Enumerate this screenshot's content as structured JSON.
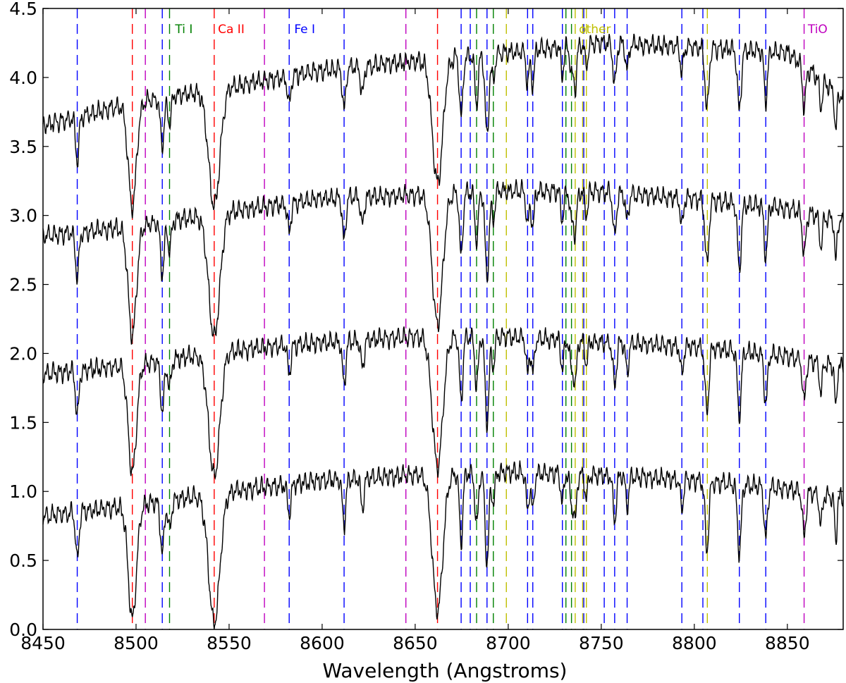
{
  "chart_data": {
    "type": "line",
    "title": "",
    "xlabel": "Wavelength (Angstroms)",
    "ylabel": "",
    "xlim": [
      8450,
      8880
    ],
    "ylim": [
      0.0,
      4.5
    ],
    "grid": false,
    "x_ticks": [
      8450,
      8500,
      8550,
      8600,
      8650,
      8700,
      8750,
      8800,
      8850
    ],
    "y_ticks": [
      "0.0",
      "0.5",
      "1.0",
      "1.5",
      "2.0",
      "2.5",
      "3.0",
      "3.5",
      "4.0",
      "4.5"
    ],
    "colors": {
      "spectrum": "#000000",
      "Ti I": "#008000",
      "Ca II": "#ff0000",
      "Fe I": "#0000ff",
      "other": "#bfbf00",
      "TiO": "#bf00bf"
    },
    "line_groups": [
      {
        "label": "Ti I",
        "color": "#008000",
        "wavelengths": [
          8518.0,
          8683.0,
          8692.0,
          8731.0,
          8734.0
        ]
      },
      {
        "label": "Ca II",
        "color": "#ff0000",
        "wavelengths": [
          8498.0,
          8542.0,
          8662.0
        ]
      },
      {
        "label": "Fe I",
        "color": "#0000ff",
        "wavelengths": [
          8468.4,
          8514.1,
          8582.3,
          8611.8,
          8674.7,
          8679.6,
          8688.6,
          8710.4,
          8713.2,
          8729.1,
          8757.2,
          8763.9,
          8793.3,
          8804.6,
          8824.2,
          8838.4,
          8740.6,
          8751.6
        ]
      },
      {
        "label": "other",
        "color": "#bfbf00",
        "wavelengths": [
          8699.0,
          8736.0,
          8740.0,
          8742.0,
          8807.0
        ]
      },
      {
        "label": "TiO",
        "color": "#bf00bf",
        "wavelengths": [
          8505.0,
          8569.0,
          8645.0,
          8859.0
        ]
      }
    ],
    "legend_positions": [
      {
        "label": "Ti I",
        "x": 8521
      },
      {
        "label": "Ca II",
        "x": 8544
      },
      {
        "label": "Fe I",
        "x": 8585
      },
      {
        "label": "other",
        "x": 8738
      },
      {
        "label": "TiO",
        "x": 8861
      }
    ],
    "series": [
      {
        "offset": 3.0,
        "continuum": [
          [
            8450,
            0.65
          ],
          [
            8500,
            0.82
          ],
          [
            8550,
            0.93
          ],
          [
            8600,
            1.05
          ],
          [
            8650,
            1.12
          ],
          [
            8700,
            1.18
          ],
          [
            8750,
            1.25
          ],
          [
            8800,
            1.22
          ],
          [
            8850,
            1.18
          ],
          [
            8880,
            0.85
          ]
        ],
        "depth_scale": 1.0
      },
      {
        "offset": 2.0,
        "continuum": [
          [
            8450,
            0.85
          ],
          [
            8500,
            0.92
          ],
          [
            8550,
            1.03
          ],
          [
            8600,
            1.12
          ],
          [
            8650,
            1.15
          ],
          [
            8700,
            1.18
          ],
          [
            8750,
            1.17
          ],
          [
            8800,
            1.12
          ],
          [
            8850,
            1.05
          ],
          [
            8880,
            0.95
          ]
        ],
        "depth_scale": 1.05
      },
      {
        "offset": 1.0,
        "continuum": [
          [
            8450,
            0.85
          ],
          [
            8500,
            0.92
          ],
          [
            8550,
            1.02
          ],
          [
            8600,
            1.08
          ],
          [
            8650,
            1.12
          ],
          [
            8700,
            1.12
          ],
          [
            8750,
            1.08
          ],
          [
            8800,
            1.05
          ],
          [
            8850,
            0.98
          ],
          [
            8880,
            0.9
          ]
        ],
        "depth_scale": 1.05
      },
      {
        "offset": 0.0,
        "continuum": [
          [
            8450,
            0.82
          ],
          [
            8500,
            0.9
          ],
          [
            8550,
            1.0
          ],
          [
            8600,
            1.08
          ],
          [
            8650,
            1.12
          ],
          [
            8700,
            1.14
          ],
          [
            8750,
            1.12
          ],
          [
            8800,
            1.08
          ],
          [
            8850,
            1.02
          ],
          [
            8880,
            0.95
          ]
        ],
        "depth_scale": 1.1
      }
    ],
    "absorption_lines": [
      {
        "x": 8468.4,
        "depth": 0.32,
        "width": 0.9
      },
      {
        "x": 8498.0,
        "depth": 0.75,
        "width": 2.2
      },
      {
        "x": 8514.1,
        "depth": 0.35,
        "width": 1.0
      },
      {
        "x": 8518.0,
        "depth": 0.2,
        "width": 0.9
      },
      {
        "x": 8542.0,
        "depth": 0.85,
        "width": 3.0
      },
      {
        "x": 8582.3,
        "depth": 0.2,
        "width": 0.9
      },
      {
        "x": 8611.8,
        "depth": 0.3,
        "width": 0.9
      },
      {
        "x": 8621.6,
        "depth": 0.2,
        "width": 0.9
      },
      {
        "x": 8662.0,
        "depth": 0.9,
        "width": 2.8
      },
      {
        "x": 8674.7,
        "depth": 0.45,
        "width": 0.9
      },
      {
        "x": 8683.0,
        "depth": 0.35,
        "width": 0.9
      },
      {
        "x": 8688.6,
        "depth": 0.6,
        "width": 1.0
      },
      {
        "x": 8692.0,
        "depth": 0.2,
        "width": 0.8
      },
      {
        "x": 8710.4,
        "depth": 0.25,
        "width": 0.8
      },
      {
        "x": 8713.2,
        "depth": 0.25,
        "width": 0.8
      },
      {
        "x": 8729.1,
        "depth": 0.2,
        "width": 0.8
      },
      {
        "x": 8734.0,
        "depth": 0.2,
        "width": 0.8
      },
      {
        "x": 8736.0,
        "depth": 0.3,
        "width": 0.8
      },
      {
        "x": 8742.0,
        "depth": 0.15,
        "width": 0.8
      },
      {
        "x": 8757.2,
        "depth": 0.3,
        "width": 0.9
      },
      {
        "x": 8763.9,
        "depth": 0.2,
        "width": 0.8
      },
      {
        "x": 8793.3,
        "depth": 0.2,
        "width": 0.8
      },
      {
        "x": 8806.8,
        "depth": 0.45,
        "width": 1.0
      },
      {
        "x": 8824.2,
        "depth": 0.45,
        "width": 1.0
      },
      {
        "x": 8838.4,
        "depth": 0.35,
        "width": 0.9
      },
      {
        "x": 8859.0,
        "depth": 0.3,
        "width": 0.9
      },
      {
        "x": 8868.0,
        "depth": 0.2,
        "width": 0.8
      },
      {
        "x": 8876.0,
        "depth": 0.3,
        "width": 0.6
      }
    ]
  }
}
